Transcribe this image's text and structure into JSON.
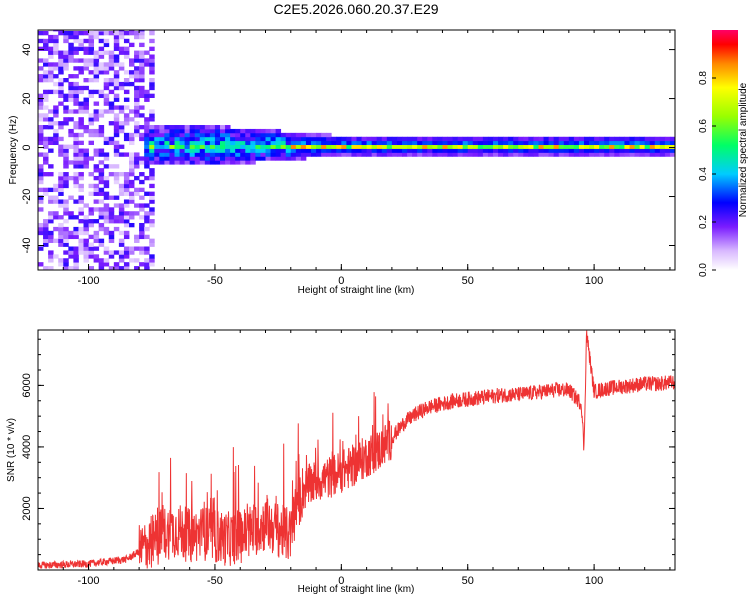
{
  "title": "C2E5.2026.060.20.37.E29",
  "chart_data": [
    {
      "type": "heatmap",
      "title": "C2E5.2026.060.20.37.E29",
      "xlabel": "Height of straight line (km)",
      "ylabel": "Frequency (Hz)",
      "xlim": [
        -120,
        132
      ],
      "ylim": [
        -50,
        48
      ],
      "xticks": [
        -100,
        -50,
        0,
        50,
        100
      ],
      "yticks": [
        -40,
        -20,
        0,
        20,
        40
      ],
      "colorbar": {
        "label": "Normalized spectral amplitude",
        "range": [
          0.0,
          1.0
        ],
        "ticks": [
          0.0,
          0.2,
          0.4,
          0.6,
          0.8
        ],
        "tick_labels": [
          "0.0",
          "0.2",
          "0.4",
          "0.6",
          "0.8"
        ]
      },
      "description_of_field": {
        "noise_region_km": [
          -120,
          -75
        ],
        "band_center_hz": 0,
        "band_halfwidth_hz_near_-50km": 6,
        "band_halfwidth_hz_beyond_0km": 2
      }
    },
    {
      "type": "line",
      "xlabel": "Height of straight line (km)",
      "ylabel": "SNR (10 * v/v)",
      "xlim": [
        -120,
        132
      ],
      "ylim": [
        0,
        7800
      ],
      "xticks": [
        -100,
        -50,
        0,
        50,
        100
      ],
      "yticks": [
        2000,
        4000,
        6000
      ],
      "series": [
        {
          "name": "SNR",
          "color": "#ee3333",
          "x": [
            -120,
            -100,
            -85,
            -80,
            -75,
            -70,
            -65,
            -60,
            -55,
            -50,
            -45,
            -40,
            -35,
            -30,
            -25,
            -20,
            -18,
            -15,
            -10,
            -5,
            0,
            5,
            10,
            15,
            20,
            25,
            30,
            35,
            40,
            45,
            50,
            55,
            60,
            65,
            70,
            75,
            80,
            85,
            90,
            95,
            96,
            97,
            100,
            105,
            110,
            115,
            120,
            125,
            132
          ],
          "values": [
            150,
            200,
            350,
            600,
            900,
            1200,
            1300,
            1100,
            1200,
            1100,
            1000,
            1100,
            1300,
            1500,
            1300,
            1100,
            2000,
            2600,
            2900,
            3000,
            3200,
            3400,
            3700,
            3900,
            4300,
            4800,
            5100,
            5300,
            5400,
            5500,
            5550,
            5600,
            5650,
            5700,
            5700,
            5750,
            5800,
            5850,
            5850,
            5400,
            3900,
            7700,
            5800,
            5900,
            5950,
            6000,
            6050,
            6050,
            6100
          ]
        }
      ]
    }
  ],
  "colors": {
    "line": "#ee3333",
    "frame": "#000000"
  }
}
